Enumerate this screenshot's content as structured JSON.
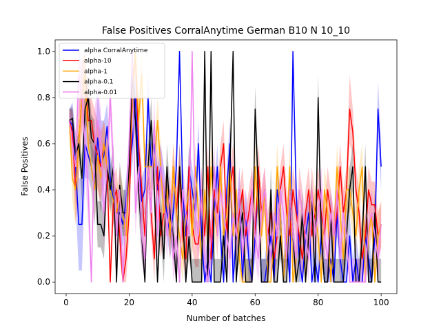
{
  "chart_data": {
    "type": "line",
    "title": "False Positives CorralAnytime German B10 N 10_10",
    "xlabel": "Number of batches",
    "ylabel": "False Positives",
    "xlim": [
      -3.5,
      105
    ],
    "ylim": [
      -0.05,
      1.05
    ],
    "xticks": [
      0,
      20,
      40,
      60,
      80,
      100
    ],
    "yticks": [
      0.0,
      0.2,
      0.4,
      0.6,
      0.8,
      1.0
    ],
    "x_range": [
      1,
      100
    ],
    "legend_position": "upper-left",
    "grid": false,
    "series": [
      {
        "name": "alpha CorralAnytime",
        "color": "#0000ff",
        "band_alpha": 0.22,
        "band": [
          0.05,
          0.1,
          0.15,
          0.2,
          0.2,
          0.15,
          0.1,
          0.1,
          0.15,
          0.2,
          0.2,
          0.15,
          0.1,
          0.1,
          0.1,
          0.1,
          0.1,
          0.1,
          0.1,
          0.1,
          0.1,
          0.1,
          0.1,
          0.1,
          0.1,
          0.1,
          0.1,
          0.1,
          0.1,
          0.1,
          0.1,
          0.1,
          0.1,
          0.1,
          0.1,
          0.1,
          0.1,
          0.1,
          0.1,
          0.1,
          0.1,
          0.1,
          0.1,
          0.1,
          0.1,
          0.1,
          0.1,
          0.1,
          0.1,
          0.1,
          0.1,
          0.1,
          0.1,
          0.1,
          0.1,
          0.1,
          0.1,
          0.1,
          0.1,
          0.1,
          0.1,
          0.1,
          0.1,
          0.1,
          0.1,
          0.1,
          0.1,
          0.1,
          0.1,
          0.1,
          0.1,
          0.1,
          0.1,
          0.1,
          0.1,
          0.1,
          0.1,
          0.1,
          0.1,
          0.1,
          0.1,
          0.1,
          0.1,
          0.1,
          0.1,
          0.1,
          0.1,
          0.1,
          0.1,
          0.1,
          0.1,
          0.1,
          0.1,
          0.1,
          0.1,
          0.1,
          0.1,
          0.12,
          0.12,
          0.1
        ],
        "values": [
          0.7,
          0.68,
          0.5,
          0.25,
          0.25,
          0.6,
          0.55,
          0.5,
          0.4,
          0.625,
          0.5,
          0.55,
          0.675,
          0.45,
          0.35,
          0.3,
          0.3,
          0.25,
          0.35,
          0.5,
          0.6,
          0.8,
          0.5,
          0.35,
          0.4,
          0.8,
          0.5,
          0.6,
          0.4,
          0.5,
          0.4,
          0.3,
          0.2,
          0.3,
          0.5,
          1.0,
          0.4,
          0.2,
          0.5,
          0.4,
          0.3,
          0.6,
          0.2,
          0.0,
          0.1,
          0.0,
          0.3,
          0.5,
          0.2,
          0.0,
          0.4,
          0.6,
          0.0,
          0.2,
          0.4,
          0.0,
          0.3,
          0.1,
          0.0,
          0.2,
          0.4,
          0.0,
          0.0,
          0.1,
          0.2,
          0.0,
          0.4,
          0.3,
          0.0,
          0.2,
          0.0,
          1.0,
          0.4,
          0.1,
          0.0,
          0.2,
          0.3,
          0.0,
          0.1,
          0.0,
          0.2,
          0.0,
          0.0,
          0.1,
          0.0,
          0.3,
          0.1,
          0.0,
          0.0,
          0.2,
          0.0,
          0.1,
          0.0,
          0.0,
          0.2,
          0.1,
          0.0,
          0.2,
          0.75,
          0.5
        ]
      },
      {
        "name": "alpha-10",
        "color": "#ff0000",
        "band_alpha": 0.22,
        "band": [
          0.05,
          0.1,
          0.15,
          0.15,
          0.15,
          0.15,
          0.1,
          0.1,
          0.15,
          0.15,
          0.15,
          0.1,
          0.1,
          0.1,
          0.1,
          0.1,
          0.1,
          0.1,
          0.1,
          0.1,
          0.1,
          0.1,
          0.1,
          0.1,
          0.1,
          0.1,
          0.1,
          0.1,
          0.1,
          0.1,
          0.1,
          0.1,
          0.1,
          0.1,
          0.1,
          0.1,
          0.1,
          0.1,
          0.1,
          0.1,
          0.1,
          0.1,
          0.1,
          0.1,
          0.1,
          0.1,
          0.1,
          0.1,
          0.1,
          0.1,
          0.1,
          0.1,
          0.1,
          0.1,
          0.1,
          0.1,
          0.1,
          0.1,
          0.1,
          0.1,
          0.1,
          0.1,
          0.1,
          0.1,
          0.1,
          0.1,
          0.1,
          0.1,
          0.1,
          0.1,
          0.1,
          0.1,
          0.1,
          0.1,
          0.1,
          0.1,
          0.1,
          0.1,
          0.1,
          0.1,
          0.1,
          0.1,
          0.1,
          0.1,
          0.1,
          0.1,
          0.1,
          0.1,
          0.1,
          0.15,
          0.1,
          0.1,
          0.1,
          0.1,
          0.1,
          0.1,
          0.1,
          0.1,
          0.1,
          0.1
        ],
        "values": [
          0.7,
          0.65,
          0.4,
          0.6,
          0.8,
          0.9,
          0.7,
          0.7,
          0.6,
          0.55,
          0.5,
          0.6,
          0.5,
          0.0,
          0.35,
          0.4,
          0.2,
          0.0,
          0.1,
          0.3,
          0.8,
          1.0,
          0.6,
          0.4,
          0.2,
          0.5,
          0.3,
          0.1,
          0.5,
          0.2,
          0.3,
          0.4,
          0.2,
          0.5,
          0.3,
          0.5,
          0.2,
          0.1,
          0.5,
          0.25,
          0.165,
          0.165,
          0.4,
          0.2,
          0.5,
          0.1,
          0.4,
          0.3,
          0.5,
          0.6,
          0.2,
          0.4,
          0.5,
          0.2,
          0.3,
          0.4,
          0.2,
          0.3,
          0.4,
          0.2,
          0.5,
          0.3,
          0.4,
          0.2,
          0.3,
          0.1,
          0.2,
          0.4,
          0.5,
          0.3,
          0.2,
          0.4,
          0.3,
          0.2,
          0.1,
          0.3,
          0.4,
          0.2,
          0.3,
          0.4,
          0.3,
          0.2,
          0.4,
          0.3,
          0.2,
          0.3,
          0.5,
          0.3,
          0.4,
          0.75,
          0.65,
          0.4,
          0.3,
          0.1,
          0.2,
          0.4,
          0.335,
          0.335,
          0.2,
          0.25
        ]
      },
      {
        "name": "alpha-1",
        "color": "#ffa500",
        "band_alpha": 0.22,
        "band": [
          0.05,
          0.1,
          0.15,
          0.15,
          0.15,
          0.15,
          0.1,
          0.1,
          0.15,
          0.15,
          0.15,
          0.1,
          0.1,
          0.1,
          0.1,
          0.1,
          0.1,
          0.1,
          0.1,
          0.1,
          0.1,
          0.1,
          0.1,
          0.1,
          0.1,
          0.1,
          0.1,
          0.1,
          0.1,
          0.1,
          0.1,
          0.1,
          0.1,
          0.1,
          0.1,
          0.1,
          0.1,
          0.1,
          0.1,
          0.1,
          0.1,
          0.1,
          0.1,
          0.1,
          0.1,
          0.1,
          0.1,
          0.1,
          0.1,
          0.1,
          0.1,
          0.1,
          0.1,
          0.1,
          0.1,
          0.1,
          0.1,
          0.1,
          0.1,
          0.1,
          0.1,
          0.1,
          0.1,
          0.1,
          0.1,
          0.1,
          0.1,
          0.1,
          0.1,
          0.1,
          0.1,
          0.1,
          0.1,
          0.1,
          0.1,
          0.1,
          0.1,
          0.1,
          0.1,
          0.1,
          0.1,
          0.1,
          0.1,
          0.1,
          0.1,
          0.1,
          0.1,
          0.1,
          0.1,
          0.1,
          0.1,
          0.1,
          0.1,
          0.1,
          0.1,
          0.1,
          0.1,
          0.1,
          0.1,
          0.1
        ],
        "values": [
          0.7,
          0.45,
          0.4,
          0.6,
          0.8,
          0.9,
          0.6,
          0.5,
          0.4,
          0.55,
          0.45,
          0.6,
          0.5,
          0.4,
          0.35,
          0.3,
          0.4,
          0.3,
          0.2,
          0.5,
          0.8,
          1.0,
          0.7,
          0.9,
          0.5,
          0.5,
          0.5,
          0.5,
          0.7,
          0.5,
          0.3,
          0.4,
          0.2,
          0.5,
          0.3,
          0.2,
          0.1,
          0.3,
          0.4,
          0.2,
          0.5,
          0.3,
          0.1,
          0.4,
          0.2,
          0.5,
          0.3,
          0.2,
          0.5,
          0.2,
          0.3,
          0.5,
          0.2,
          0.4,
          0.1,
          0.0,
          0.0,
          0.0,
          0.0,
          0.5,
          0.3,
          0.2,
          0.4,
          0.0,
          0.0,
          0.2,
          0.5,
          0.3,
          0.0,
          0.2,
          0.5,
          0.0,
          0.1,
          0.4,
          0.3,
          0.0,
          0.2,
          0.4,
          0.3,
          0.2,
          0.0,
          0.4,
          0.3,
          0.0,
          0.2,
          0.5,
          0.3,
          0.1,
          0.4,
          0.4,
          0.3,
          0.2,
          0.4,
          0.5,
          0.0,
          0.2,
          0.3,
          0.0,
          0.2,
          0.25
        ]
      },
      {
        "name": "alpha-0.1",
        "color": "#000000",
        "band_alpha": 0.25,
        "band": [
          0.05,
          0.05,
          0.05,
          0.05,
          0.1,
          0.1,
          0.1,
          0.1,
          0.1,
          0.1,
          0.1,
          0.1,
          0.1,
          0.1,
          0.1,
          0.1,
          0.1,
          0.1,
          0.1,
          0.1,
          0.1,
          0.1,
          0.1,
          0.1,
          0.1,
          0.1,
          0.1,
          0.1,
          0.1,
          0.1,
          0.1,
          0.1,
          0.1,
          0.1,
          0.1,
          0.1,
          0.1,
          0.1,
          0.1,
          0.1,
          0.1,
          0.1,
          0.1,
          0.1,
          0.1,
          0.1,
          0.1,
          0.1,
          0.1,
          0.1,
          0.1,
          0.1,
          0.1,
          0.1,
          0.1,
          0.1,
          0.1,
          0.1,
          0.1,
          0.1,
          0.1,
          0.1,
          0.1,
          0.1,
          0.1,
          0.1,
          0.1,
          0.1,
          0.1,
          0.1,
          0.1,
          0.1,
          0.1,
          0.1,
          0.1,
          0.1,
          0.1,
          0.1,
          0.1,
          0.1,
          0.1,
          0.1,
          0.1,
          0.1,
          0.1,
          0.1,
          0.1,
          0.1,
          0.1,
          0.1,
          0.1,
          0.1,
          0.1,
          0.1,
          0.1,
          0.1,
          0.1,
          0.1,
          0.1,
          0.1
        ],
        "values": [
          0.7,
          0.71,
          0.55,
          0.6,
          0.45,
          0.75,
          0.8,
          0.625,
          0.6,
          0.25,
          0.25,
          0.2,
          0.5,
          0.4,
          0.5,
          0.0,
          0.42,
          0.3,
          0.3,
          0.5,
          0.9,
          0.7,
          0.4,
          0.2,
          0.0,
          0.5,
          0.7,
          0.4,
          0.0,
          0.3,
          0.1,
          0.5,
          0.3,
          0.2,
          0.0,
          0.5,
          0.3,
          0.0,
          0.2,
          0.0,
          0.0,
          0.0,
          0.0,
          1.0,
          0.0,
          1.0,
          0.0,
          0.0,
          0.0,
          0.2,
          0.0,
          0.5,
          1.0,
          0.0,
          0.2,
          0.3,
          0.0,
          0.0,
          0.0,
          0.75,
          0.4,
          0.0,
          0.0,
          0.0,
          0.4,
          0.0,
          0.0,
          0.2,
          0.0,
          0.0,
          0.4,
          0.2,
          0.0,
          0.1,
          0.3,
          0.0,
          0.2,
          0.35,
          0.0,
          0.8,
          0.2,
          0.0,
          0.0,
          0.3,
          0.0,
          0.0,
          0.0,
          0.0,
          0.2,
          0.4,
          0.5,
          0.0,
          0.0,
          0.2,
          0.5,
          0.0,
          0.0,
          0.3,
          0.0,
          0.0
        ]
      },
      {
        "name": "alpha-0.01",
        "color": "#ee82ee",
        "band_alpha": 0.35,
        "band": [
          0.05,
          0.1,
          0.15,
          0.15,
          0.15,
          0.15,
          0.15,
          0.1,
          0.15,
          0.15,
          0.15,
          0.15,
          0.1,
          0.1,
          0.1,
          0.1,
          0.1,
          0.1,
          0.1,
          0.1,
          0.1,
          0.1,
          0.1,
          0.1,
          0.1,
          0.1,
          0.1,
          0.1,
          0.1,
          0.1,
          0.1,
          0.1,
          0.1,
          0.1,
          0.1,
          0.1,
          0.1,
          0.1,
          0.1,
          0.1,
          0.1,
          0.1,
          0.1,
          0.1,
          0.1,
          0.1,
          0.1,
          0.1,
          0.1,
          0.1,
          0.1,
          0.1,
          0.1,
          0.1,
          0.1,
          0.1,
          0.1,
          0.1,
          0.1,
          0.1,
          0.1,
          0.1,
          0.1,
          0.1,
          0.1,
          0.1,
          0.1,
          0.1,
          0.1,
          0.1,
          0.1,
          0.1,
          0.1,
          0.1,
          0.1,
          0.1,
          0.1,
          0.1,
          0.1,
          0.1,
          0.1,
          0.1,
          0.1,
          0.1,
          0.1,
          0.1,
          0.1,
          0.1,
          0.1,
          0.1,
          0.1,
          0.1,
          0.1,
          0.1,
          0.1,
          0.1,
          0.1,
          0.1,
          0.1,
          0.1
        ],
        "values": [
          0.7,
          0.6,
          0.5,
          0.9,
          0.8,
          0.6,
          0.4,
          0.0,
          0.6,
          0.7,
          0.6,
          0.3,
          0.5,
          0.8,
          0.5,
          0.2,
          0.4,
          0.0,
          0.3,
          0.6,
          1.0,
          0.3,
          0.5,
          0.2,
          0.1,
          0.5,
          0.3,
          0.7,
          0.2,
          0.5,
          0.4,
          0.2,
          0.4,
          0.1,
          0.2,
          0.0,
          0.4,
          0.3,
          0.2,
          1.0,
          0.3,
          0.2,
          0.4,
          0.1,
          0.0,
          0.2,
          0.5,
          0.2,
          0.4,
          0.3,
          0.2,
          0.1,
          0.3,
          0.2,
          0.4,
          0.1,
          0.3,
          0.2,
          0.4,
          0.2,
          0.1,
          0.3,
          0.4,
          0.2,
          0.1,
          0.3,
          0.2,
          0.4,
          0.3,
          0.1,
          0.4,
          0.2,
          0.1,
          0.4,
          0.3,
          0.2,
          0.1,
          0.4,
          0.2,
          0.3,
          0.4,
          0.2,
          0.1,
          0.3,
          0.2,
          0.4,
          0.1,
          0.3,
          0.2,
          0.0,
          0.0,
          0.0,
          0.0,
          0.0,
          0.0,
          0.25,
          0.3,
          0.2,
          0.1,
          0.25
        ]
      }
    ]
  }
}
